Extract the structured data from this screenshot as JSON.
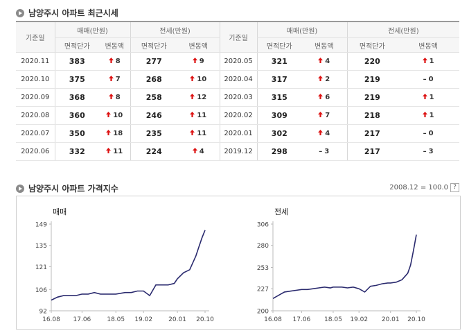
{
  "section1": {
    "title": "남양주시 아파트 최근시세"
  },
  "table": {
    "date_header": "기준일",
    "sale_header": "매매(만원)",
    "rent_header": "전세(만원)",
    "unit_price_header": "면적단가",
    "change_header": "변동액",
    "left_rows": [
      {
        "date": "2020.11",
        "sale": "383",
        "sale_chg": "8",
        "sale_dir": "up",
        "rent": "277",
        "rent_chg": "9",
        "rent_dir": "up"
      },
      {
        "date": "2020.10",
        "sale": "375",
        "sale_chg": "7",
        "sale_dir": "up",
        "rent": "268",
        "rent_chg": "10",
        "rent_dir": "up"
      },
      {
        "date": "2020.09",
        "sale": "368",
        "sale_chg": "8",
        "sale_dir": "up",
        "rent": "258",
        "rent_chg": "12",
        "rent_dir": "up"
      },
      {
        "date": "2020.08",
        "sale": "360",
        "sale_chg": "10",
        "sale_dir": "up",
        "rent": "246",
        "rent_chg": "11",
        "rent_dir": "up"
      },
      {
        "date": "2020.07",
        "sale": "350",
        "sale_chg": "18",
        "sale_dir": "up",
        "rent": "235",
        "rent_chg": "11",
        "rent_dir": "up"
      },
      {
        "date": "2020.06",
        "sale": "332",
        "sale_chg": "11",
        "sale_dir": "up",
        "rent": "224",
        "rent_chg": "4",
        "rent_dir": "up"
      }
    ],
    "right_rows": [
      {
        "date": "2020.05",
        "sale": "321",
        "sale_chg": "4",
        "sale_dir": "up",
        "rent": "220",
        "rent_chg": "1",
        "rent_dir": "up"
      },
      {
        "date": "2020.04",
        "sale": "317",
        "sale_chg": "2",
        "sale_dir": "up",
        "rent": "219",
        "rent_chg": "0",
        "rent_dir": "flat"
      },
      {
        "date": "2020.03",
        "sale": "315",
        "sale_chg": "6",
        "sale_dir": "up",
        "rent": "219",
        "rent_chg": "1",
        "rent_dir": "up"
      },
      {
        "date": "2020.02",
        "sale": "309",
        "sale_chg": "7",
        "sale_dir": "up",
        "rent": "218",
        "rent_chg": "1",
        "rent_dir": "up"
      },
      {
        "date": "2020.01",
        "sale": "302",
        "sale_chg": "4",
        "sale_dir": "up",
        "rent": "217",
        "rent_chg": "0",
        "rent_dir": "flat"
      },
      {
        "date": "2019.12",
        "sale": "298",
        "sale_chg": "3",
        "sale_dir": "flat",
        "rent": "217",
        "rent_chg": "3",
        "rent_dir": "flat"
      }
    ]
  },
  "section2": {
    "title": "남양주시 아파트 가격지수",
    "note": "2008.12 = 100.0",
    "help": "?"
  },
  "colors": {
    "up": "#dd1111",
    "line": "#2a2a6e"
  },
  "chart_data": [
    {
      "type": "line",
      "title": "매매",
      "x": [
        "2016.08",
        "2016.10",
        "2016.12",
        "2017.02",
        "2017.04",
        "2017.06",
        "2017.08",
        "2017.10",
        "2017.12",
        "2018.02",
        "2018.04",
        "2018.05",
        "2018.08",
        "2018.10",
        "2018.12",
        "2019.02",
        "2019.04",
        "2019.06",
        "2019.08",
        "2019.10",
        "2019.12",
        "2020.01",
        "2020.03",
        "2020.05",
        "2020.07",
        "2020.08",
        "2020.09",
        "2020.10"
      ],
      "values": [
        99,
        101,
        102,
        102,
        102,
        103,
        103,
        104,
        103,
        103,
        103,
        103,
        104,
        104,
        105,
        105,
        102,
        109,
        109,
        109,
        110,
        113,
        117,
        119,
        128,
        134,
        140,
        145
      ],
      "xticks": [
        "16.08",
        "17.06",
        "18.05",
        "19.02",
        "20.01",
        "20.10"
      ],
      "yticks": [
        92,
        106,
        121,
        135,
        149
      ],
      "ylim": [
        92,
        149
      ]
    },
    {
      "type": "line",
      "title": "전세",
      "x": [
        "2016.08",
        "2016.10",
        "2016.12",
        "2017.02",
        "2017.04",
        "2017.06",
        "2017.08",
        "2017.10",
        "2017.12",
        "2018.02",
        "2018.04",
        "2018.05",
        "2018.08",
        "2018.10",
        "2018.12",
        "2019.02",
        "2019.04",
        "2019.06",
        "2019.08",
        "2019.10",
        "2019.12",
        "2020.01",
        "2020.03",
        "2020.05",
        "2020.07",
        "2020.08",
        "2020.09",
        "2020.10"
      ],
      "values": [
        215,
        219,
        223,
        224,
        225,
        226,
        226,
        227,
        228,
        229,
        228,
        229,
        229,
        228,
        229,
        227,
        223,
        230,
        231,
        233,
        234,
        234,
        235,
        238,
        246,
        256,
        274,
        293
      ],
      "xticks": [
        "16.08",
        "17.06",
        "18.05",
        "19.02",
        "20.01",
        "20.10"
      ],
      "yticks": [
        200,
        227,
        253,
        280,
        306
      ],
      "ylim": [
        200,
        306
      ]
    }
  ]
}
